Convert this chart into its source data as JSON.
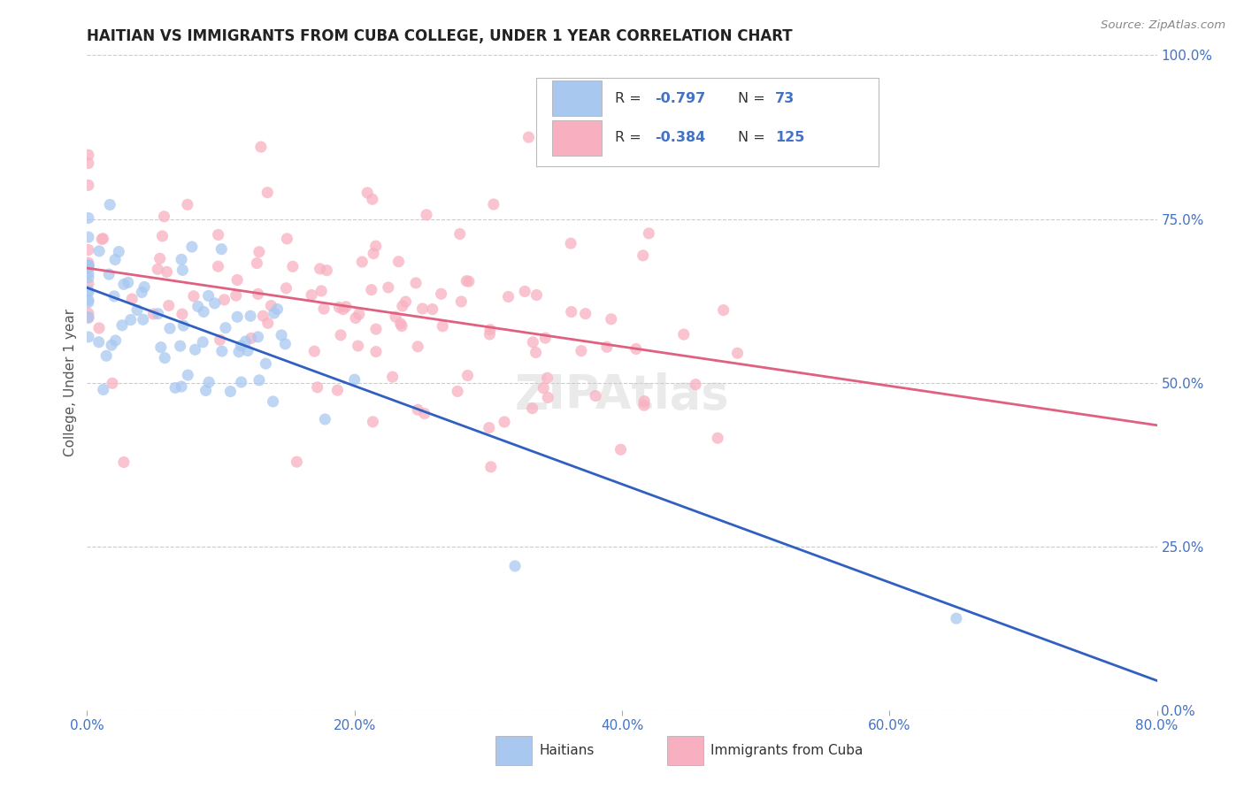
{
  "title": "HAITIAN VS IMMIGRANTS FROM CUBA COLLEGE, UNDER 1 YEAR CORRELATION CHART",
  "source": "Source: ZipAtlas.com",
  "xlabel_ticks": [
    "0.0%",
    "20.0%",
    "40.0%",
    "60.0%",
    "80.0%"
  ],
  "xlabel_tick_vals": [
    0.0,
    0.2,
    0.4,
    0.6,
    0.8
  ],
  "ylabel": "College, Under 1 year",
  "ylabel_ticks": [
    "0.0%",
    "25.0%",
    "50.0%",
    "75.0%",
    "100.0%"
  ],
  "ylabel_tick_vals": [
    0.0,
    0.25,
    0.5,
    0.75,
    1.0
  ],
  "xmin": 0.0,
  "xmax": 0.8,
  "ymin": 0.0,
  "ymax": 1.0,
  "haitians_color": "#a8c8f0",
  "cuba_color": "#f8b0c0",
  "haitians_line_color": "#3060c0",
  "cuba_line_color": "#e06080",
  "R_haitians": -0.797,
  "N_haitians": 73,
  "R_cuba": -0.384,
  "N_cuba": 125,
  "scatter_alpha": 0.75,
  "scatter_size": 90,
  "legend_label_haitians": "Haitians",
  "legend_label_cuba": "Immigrants from Cuba",
  "watermark": "ZIPAtlas",
  "background_color": "#ffffff",
  "grid_color": "#cccccc",
  "title_color": "#222222",
  "source_color": "#888888",
  "axis_label_color": "#4472c4",
  "legend_R_color": "#4472c4",
  "haitian_line_start_y": 0.645,
  "haitian_line_end_y": 0.045,
  "cuba_line_start_y": 0.675,
  "cuba_line_end_y": 0.435
}
